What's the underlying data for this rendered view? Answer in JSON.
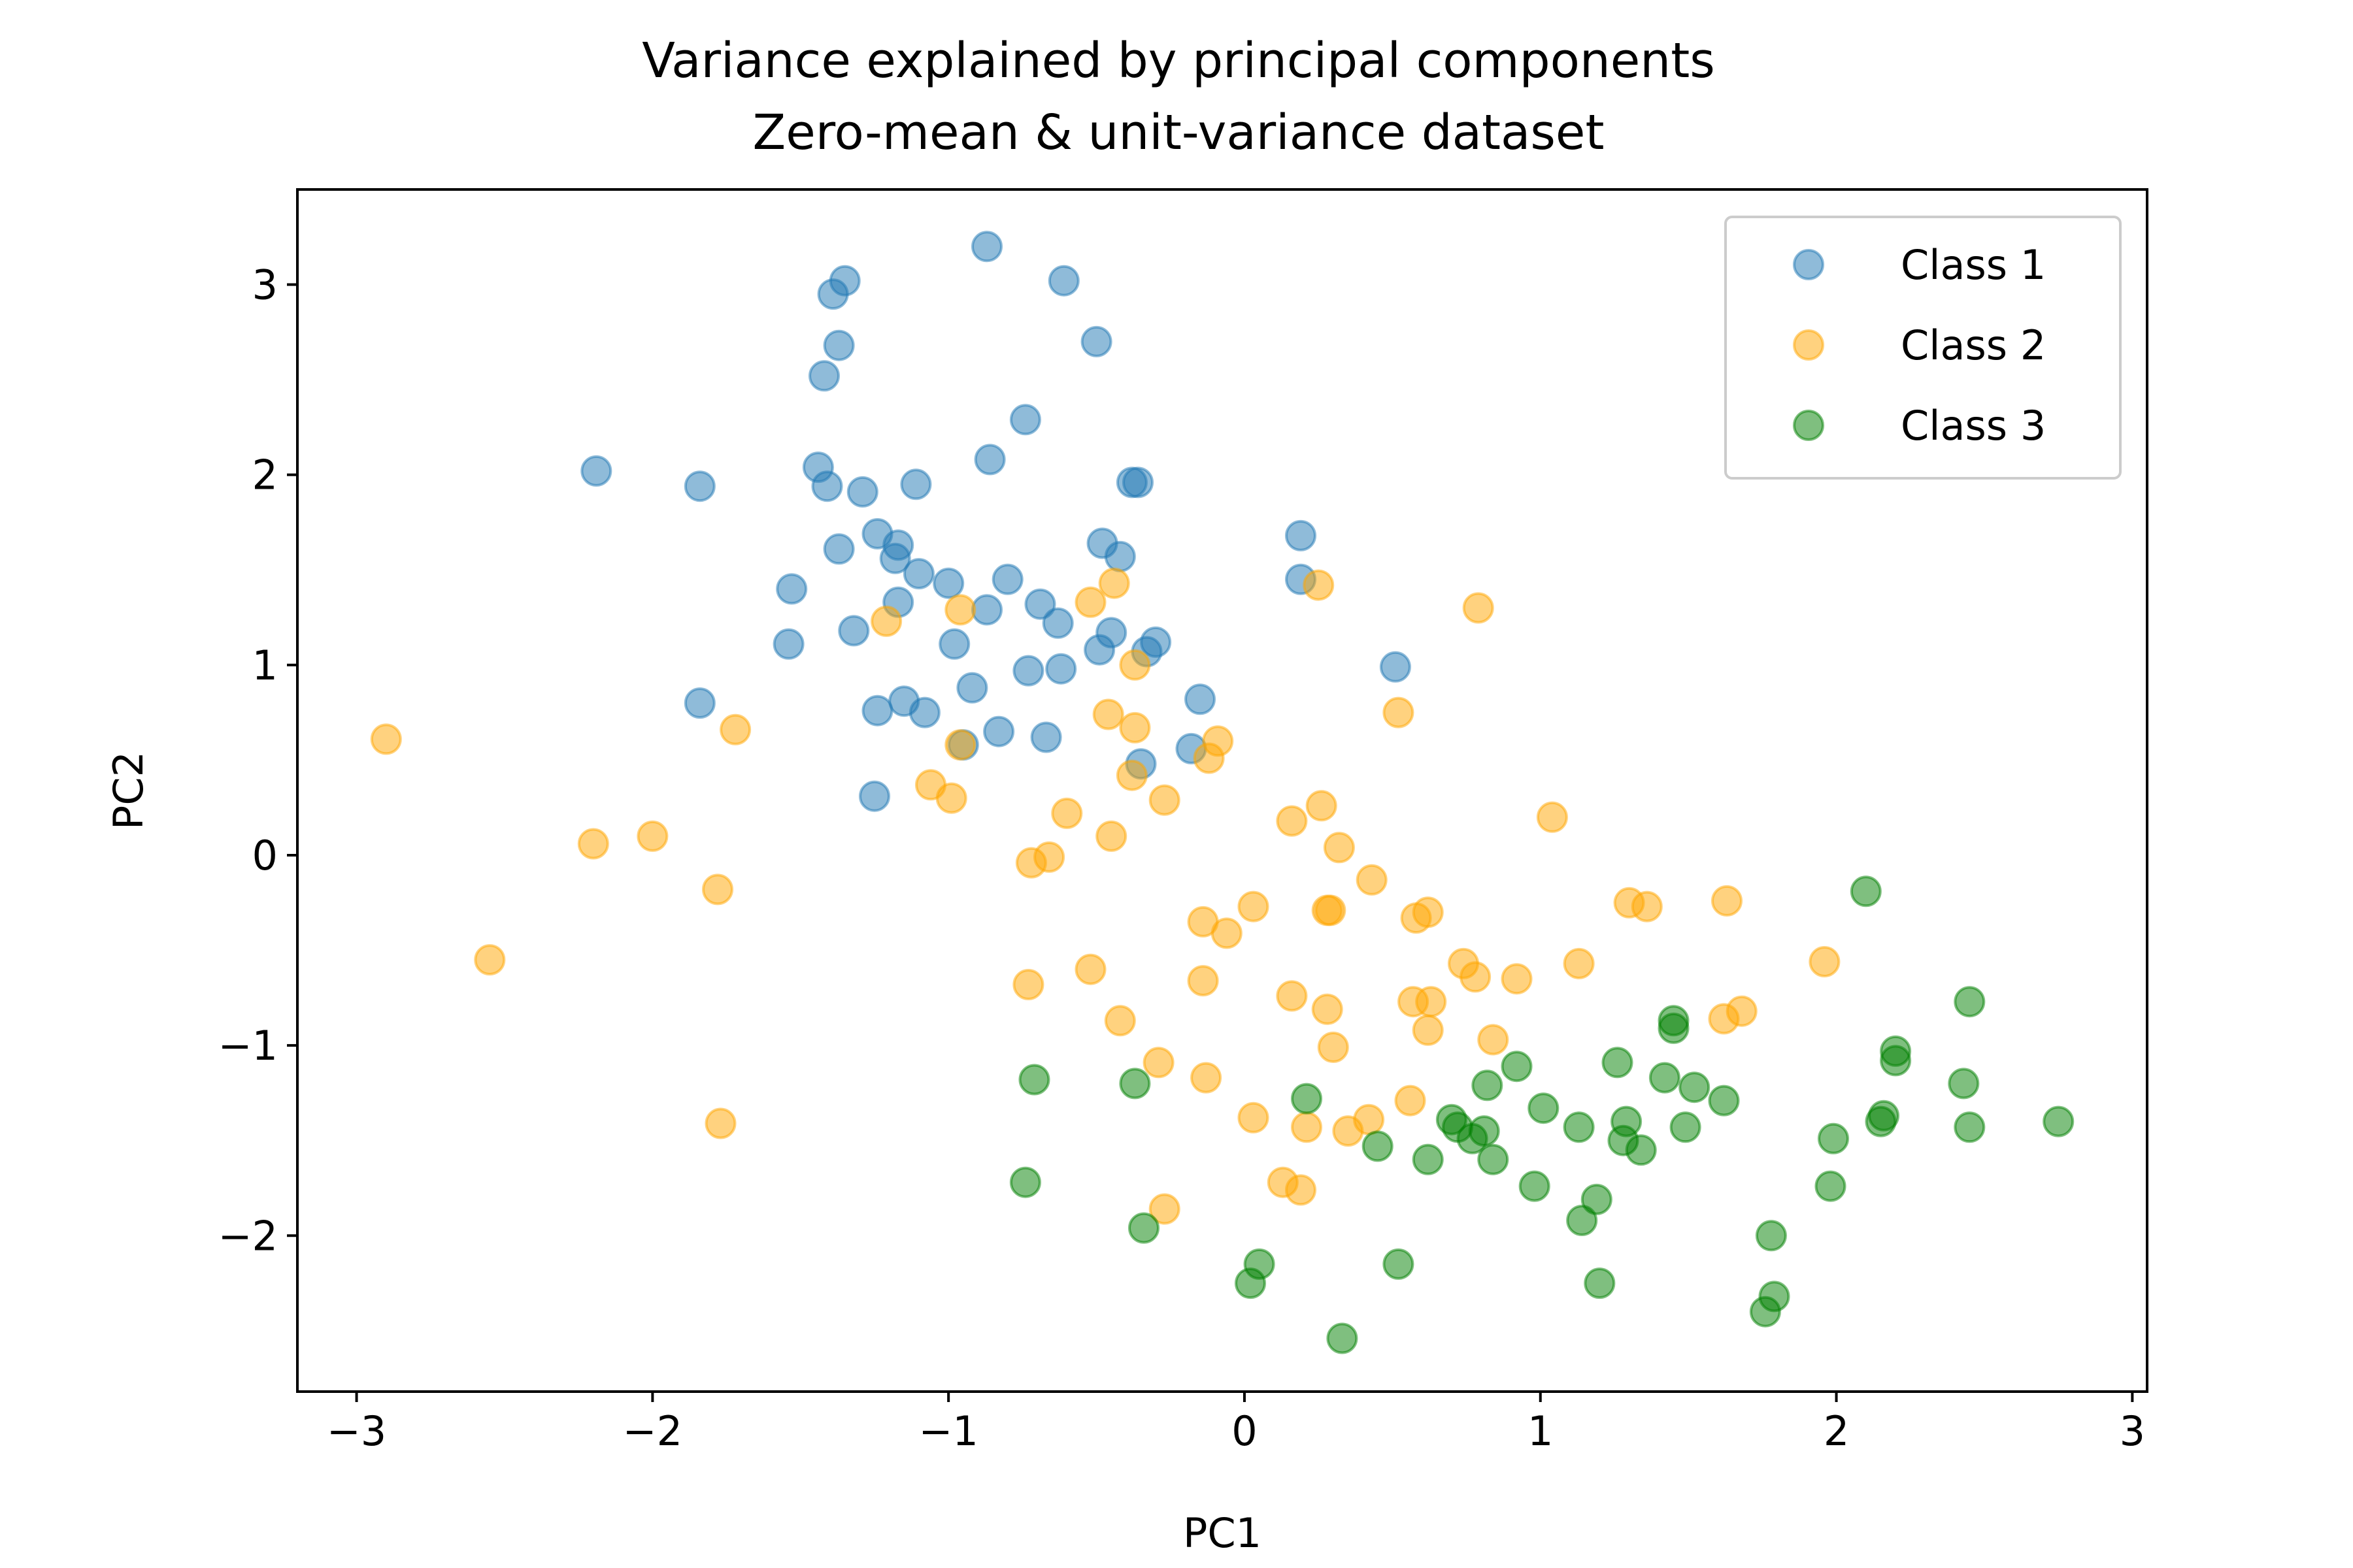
{
  "chart_data": {
    "type": "scatter",
    "title": "Variance explained by principal components",
    "subtitle": "Zero-mean & unit-variance dataset",
    "xlabel": "PC1",
    "ylabel": "PC2",
    "xlim": [
      -3.2,
      3.05
    ],
    "ylim": [
      -2.82,
      3.5
    ],
    "xticks": [
      -3,
      -2,
      -1,
      0,
      1,
      2,
      3
    ],
    "yticks": [
      -2,
      -1,
      0,
      1,
      2,
      3
    ],
    "xtick_labels": [
      "−3",
      "−2",
      "−1",
      "0",
      "1",
      "2",
      "3"
    ],
    "ytick_labels": [
      "−2",
      "−1",
      "0",
      "1",
      "2",
      "3"
    ],
    "grid": false,
    "legend_position": "top-right",
    "series": [
      {
        "name": "Class 1",
        "color": "#1f77b4",
        "points": [
          [
            -0.87,
            3.2
          ],
          [
            -0.61,
            3.02
          ],
          [
            -1.35,
            3.02
          ],
          [
            -1.39,
            2.95
          ],
          [
            -0.5,
            2.7
          ],
          [
            -1.37,
            2.68
          ],
          [
            -1.42,
            2.52
          ],
          [
            -0.74,
            2.29
          ],
          [
            -2.19,
            2.02
          ],
          [
            -0.86,
            2.08
          ],
          [
            -1.84,
            1.94
          ],
          [
            -1.44,
            2.04
          ],
          [
            -1.41,
            1.94
          ],
          [
            -1.29,
            1.91
          ],
          [
            -1.11,
            1.95
          ],
          [
            -0.38,
            1.96
          ],
          [
            -0.36,
            1.96
          ],
          [
            -1.24,
            1.69
          ],
          [
            -1.17,
            1.63
          ],
          [
            -1.37,
            1.61
          ],
          [
            -1.18,
            1.56
          ],
          [
            -0.48,
            1.64
          ],
          [
            -0.42,
            1.57
          ],
          [
            0.19,
            1.68
          ],
          [
            0.19,
            1.45
          ],
          [
            -1.53,
            1.4
          ],
          [
            -1.1,
            1.48
          ],
          [
            -1.0,
            1.43
          ],
          [
            -0.8,
            1.45
          ],
          [
            -0.69,
            1.32
          ],
          [
            -1.17,
            1.33
          ],
          [
            -0.87,
            1.29
          ],
          [
            -0.63,
            1.22
          ],
          [
            -1.32,
            1.18
          ],
          [
            -0.45,
            1.17
          ],
          [
            -0.3,
            1.12
          ],
          [
            -0.33,
            1.07
          ],
          [
            -1.54,
            1.11
          ],
          [
            -0.98,
            1.11
          ],
          [
            -0.49,
            1.08
          ],
          [
            -0.73,
            0.97
          ],
          [
            -0.62,
            0.98
          ],
          [
            0.51,
            0.99
          ],
          [
            -0.92,
            0.88
          ],
          [
            -1.84,
            0.8
          ],
          [
            -1.15,
            0.81
          ],
          [
            -1.08,
            0.75
          ],
          [
            -1.24,
            0.76
          ],
          [
            -0.83,
            0.65
          ],
          [
            -0.67,
            0.62
          ],
          [
            -0.95,
            0.58
          ],
          [
            -0.35,
            0.48
          ],
          [
            -0.15,
            0.82
          ],
          [
            -0.18,
            0.56
          ],
          [
            -1.25,
            0.31
          ]
        ]
      },
      {
        "name": "Class 2",
        "color": "#ffa500",
        "points": [
          [
            -2.9,
            0.61
          ],
          [
            -1.72,
            0.66
          ],
          [
            -2.2,
            0.06
          ],
          [
            -2.0,
            0.1
          ],
          [
            -1.78,
            -0.18
          ],
          [
            -2.55,
            -0.55
          ],
          [
            -1.77,
            -1.41
          ],
          [
            -1.21,
            1.23
          ],
          [
            -0.96,
            1.29
          ],
          [
            -0.52,
            1.33
          ],
          [
            -0.44,
            1.43
          ],
          [
            0.25,
            1.42
          ],
          [
            0.79,
            1.3
          ],
          [
            -0.37,
            1.0
          ],
          [
            -0.46,
            0.74
          ],
          [
            -0.37,
            0.67
          ],
          [
            0.52,
            0.75
          ],
          [
            -0.96,
            0.58
          ],
          [
            -1.06,
            0.37
          ],
          [
            -0.99,
            0.3
          ],
          [
            -0.38,
            0.42
          ],
          [
            -0.09,
            0.6
          ],
          [
            -0.12,
            0.51
          ],
          [
            -0.27,
            0.29
          ],
          [
            -0.6,
            0.22
          ],
          [
            -0.45,
            0.1
          ],
          [
            -0.72,
            -0.04
          ],
          [
            -0.66,
            -0.01
          ],
          [
            0.16,
            0.18
          ],
          [
            0.26,
            0.26
          ],
          [
            0.32,
            0.04
          ],
          [
            1.04,
            0.2
          ],
          [
            0.43,
            -0.13
          ],
          [
            0.03,
            -0.27
          ],
          [
            0.28,
            -0.29
          ],
          [
            0.29,
            -0.29
          ],
          [
            -0.14,
            -0.35
          ],
          [
            -0.06,
            -0.41
          ],
          [
            0.58,
            -0.33
          ],
          [
            0.62,
            -0.3
          ],
          [
            1.3,
            -0.25
          ],
          [
            1.36,
            -0.27
          ],
          [
            1.63,
            -0.24
          ],
          [
            -0.52,
            -0.6
          ],
          [
            -0.73,
            -0.68
          ],
          [
            -0.14,
            -0.66
          ],
          [
            0.74,
            -0.57
          ],
          [
            0.78,
            -0.64
          ],
          [
            0.92,
            -0.65
          ],
          [
            1.13,
            -0.57
          ],
          [
            1.96,
            -0.56
          ],
          [
            0.16,
            -0.74
          ],
          [
            0.28,
            -0.81
          ],
          [
            0.57,
            -0.77
          ],
          [
            0.63,
            -0.77
          ],
          [
            1.62,
            -0.86
          ],
          [
            1.68,
            -0.82
          ],
          [
            -0.42,
            -0.87
          ],
          [
            0.62,
            -0.92
          ],
          [
            0.84,
            -0.97
          ],
          [
            0.3,
            -1.01
          ],
          [
            -0.29,
            -1.09
          ],
          [
            -0.13,
            -1.17
          ],
          [
            0.56,
            -1.29
          ],
          [
            0.03,
            -1.38
          ],
          [
            0.21,
            -1.43
          ],
          [
            0.35,
            -1.45
          ],
          [
            0.42,
            -1.39
          ],
          [
            0.13,
            -1.72
          ],
          [
            0.19,
            -1.76
          ],
          [
            -0.27,
            -1.86
          ]
        ]
      },
      {
        "name": "Class 3",
        "color": "#008000",
        "points": [
          [
            2.1,
            -0.19
          ],
          [
            2.45,
            -0.77
          ],
          [
            1.45,
            -0.87
          ],
          [
            1.45,
            -0.91
          ],
          [
            2.2,
            -1.03
          ],
          [
            2.2,
            -1.08
          ],
          [
            1.26,
            -1.09
          ],
          [
            0.92,
            -1.11
          ],
          [
            1.42,
            -1.17
          ],
          [
            1.52,
            -1.22
          ],
          [
            2.43,
            -1.2
          ],
          [
            1.62,
            -1.29
          ],
          [
            -0.71,
            -1.18
          ],
          [
            -0.37,
            -1.2
          ],
          [
            0.21,
            -1.28
          ],
          [
            0.82,
            -1.21
          ],
          [
            1.01,
            -1.33
          ],
          [
            0.7,
            -1.39
          ],
          [
            0.72,
            -1.43
          ],
          [
            0.81,
            -1.45
          ],
          [
            0.77,
            -1.49
          ],
          [
            1.13,
            -1.43
          ],
          [
            1.29,
            -1.4
          ],
          [
            2.16,
            -1.37
          ],
          [
            2.15,
            -1.4
          ],
          [
            2.45,
            -1.43
          ],
          [
            2.75,
            -1.4
          ],
          [
            1.28,
            -1.5
          ],
          [
            1.34,
            -1.55
          ],
          [
            1.49,
            -1.43
          ],
          [
            1.99,
            -1.49
          ],
          [
            0.45,
            -1.53
          ],
          [
            0.62,
            -1.6
          ],
          [
            0.84,
            -1.6
          ],
          [
            0.98,
            -1.74
          ],
          [
            1.19,
            -1.81
          ],
          [
            1.14,
            -1.92
          ],
          [
            1.98,
            -1.74
          ],
          [
            -0.74,
            -1.72
          ],
          [
            -0.34,
            -1.96
          ],
          [
            1.78,
            -2.0
          ],
          [
            0.52,
            -2.15
          ],
          [
            0.05,
            -2.15
          ],
          [
            0.02,
            -2.25
          ],
          [
            1.2,
            -2.25
          ],
          [
            1.79,
            -2.32
          ],
          [
            1.76,
            -2.4
          ],
          [
            0.33,
            -2.54
          ]
        ]
      }
    ]
  }
}
